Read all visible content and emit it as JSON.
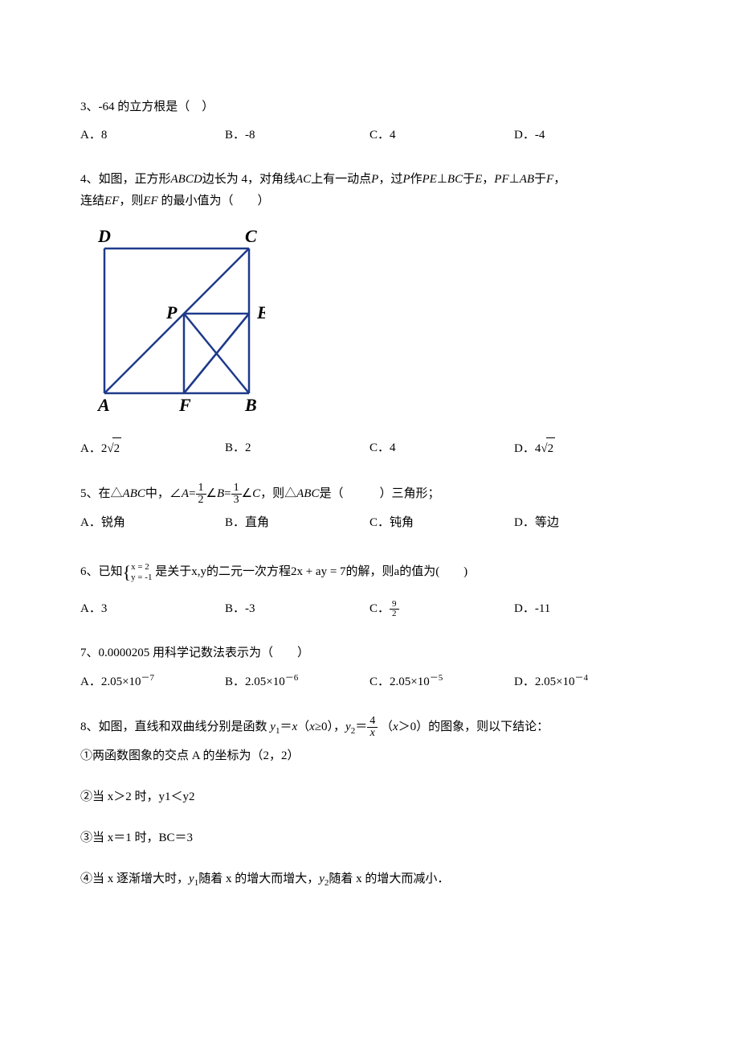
{
  "q3": {
    "text": "3、-64 的立方根是（　）",
    "options": {
      "a": "A．8",
      "b": "B．-8",
      "c": "C．4",
      "d": "D．-4"
    }
  },
  "q4": {
    "prefix": "4、如图，正方形",
    "abcd": "ABCD",
    "mid1": "边长为 4，对角线",
    "ac": "AC",
    "mid2": "上有一动点",
    "p": "P",
    "mid3": "，过",
    "p2": "P",
    "mid4": "作",
    "pe": "PE",
    "perp": "⊥",
    "bc": "BC",
    "mid5": "于",
    "e": "E",
    "comma": "，",
    "pf": "PF",
    "perp2": "⊥",
    "ab": "AB",
    "mid6": "于",
    "f": "F",
    "line2_prefix": "连结",
    "ef": "EF",
    "line2_mid": "，则",
    "ef2": "EF",
    "line2_suffix": " 的最小值为（　　）",
    "diagram": {
      "labels": {
        "D": "D",
        "C": "C",
        "P": "P",
        "E": "E",
        "A": "A",
        "F": "F",
        "B": "B"
      },
      "stroke": "#1e3a8a",
      "fontColor": "#000000",
      "fontSize": 22,
      "fontStyle": "italic bold",
      "fontFamily": "Times New Roman",
      "strokeWidth": 2.5
    },
    "options": {
      "a_prefix": "A．",
      "a_val": "2",
      "a_sqrt": "2",
      "b": "B．2",
      "c": "C．4",
      "d_prefix": "D．",
      "d_val": "4",
      "d_sqrt": "2"
    }
  },
  "q5": {
    "prefix": "5、在",
    "tri": "△",
    "abc": "ABC",
    "mid1": "中，",
    "ang": "∠",
    "a": "A",
    "eq": "=",
    "frac1": {
      "n": "1",
      "d": "2"
    },
    "b": "B",
    "frac2": {
      "n": "1",
      "d": "3"
    },
    "c": "C",
    "mid2": "，则",
    "abc2": "ABC",
    "suffix": "是（　　　）三角形；",
    "options": {
      "a": "A．锐角",
      "b": "B．直角",
      "c": "C．钝角",
      "d": "D．等边"
    }
  },
  "q6": {
    "prefix": "6、已知",
    "eq1": "x = 2",
    "eq2": "y = -1",
    "mid": "是关于x,y的二元一次方程2x + ay = 7的解，则a的值为(　　)",
    "options": {
      "a": "A．3",
      "b": "B．-3",
      "c_prefix": "C．",
      "c_frac": {
        "n": "9",
        "d": "2"
      },
      "d": "D．-11"
    }
  },
  "q7": {
    "text": "7、0.0000205 用科学记数法表示为（　　）",
    "options": {
      "a_prefix": "A．2.05×10",
      "a_exp": "－7",
      "b_prefix": "B．2.05×10",
      "b_exp": "－6",
      "c_prefix": "C．2.05×10",
      "c_exp": "－5",
      "d_prefix": "D．2.05×10",
      "d_exp": "－4"
    }
  },
  "q8": {
    "prefix": "8、如图，直线和双曲线分别是函数 ",
    "y1": "y",
    "sub1": "1",
    "eq1": "＝",
    "x1": "x",
    "paren1": "（",
    "x2": "x",
    "cond1": "≥0），",
    "y2": "y",
    "sub2": "2",
    "eq2": "＝",
    "frac": {
      "n": "4",
      "d_var": "x"
    },
    "paren2": "（",
    "x3": "x",
    "cond2": "＞0）的图象，则以下结论：",
    "s1": "①两函数图象的交点 A 的坐标为（2，2）",
    "s2": "②当 x＞2 时，y1＜y2",
    "s3": "③当 x＝1 时，BC＝3",
    "s4_prefix": "④当 x 逐渐增大时，",
    "s4_y1": "y",
    "s4_sub1": "1",
    "s4_mid1": "随着 x 的增大而增大，",
    "s4_y2": "y",
    "s4_sub2": "2",
    "s4_mid2": "随着 x 的增大而减小．"
  }
}
